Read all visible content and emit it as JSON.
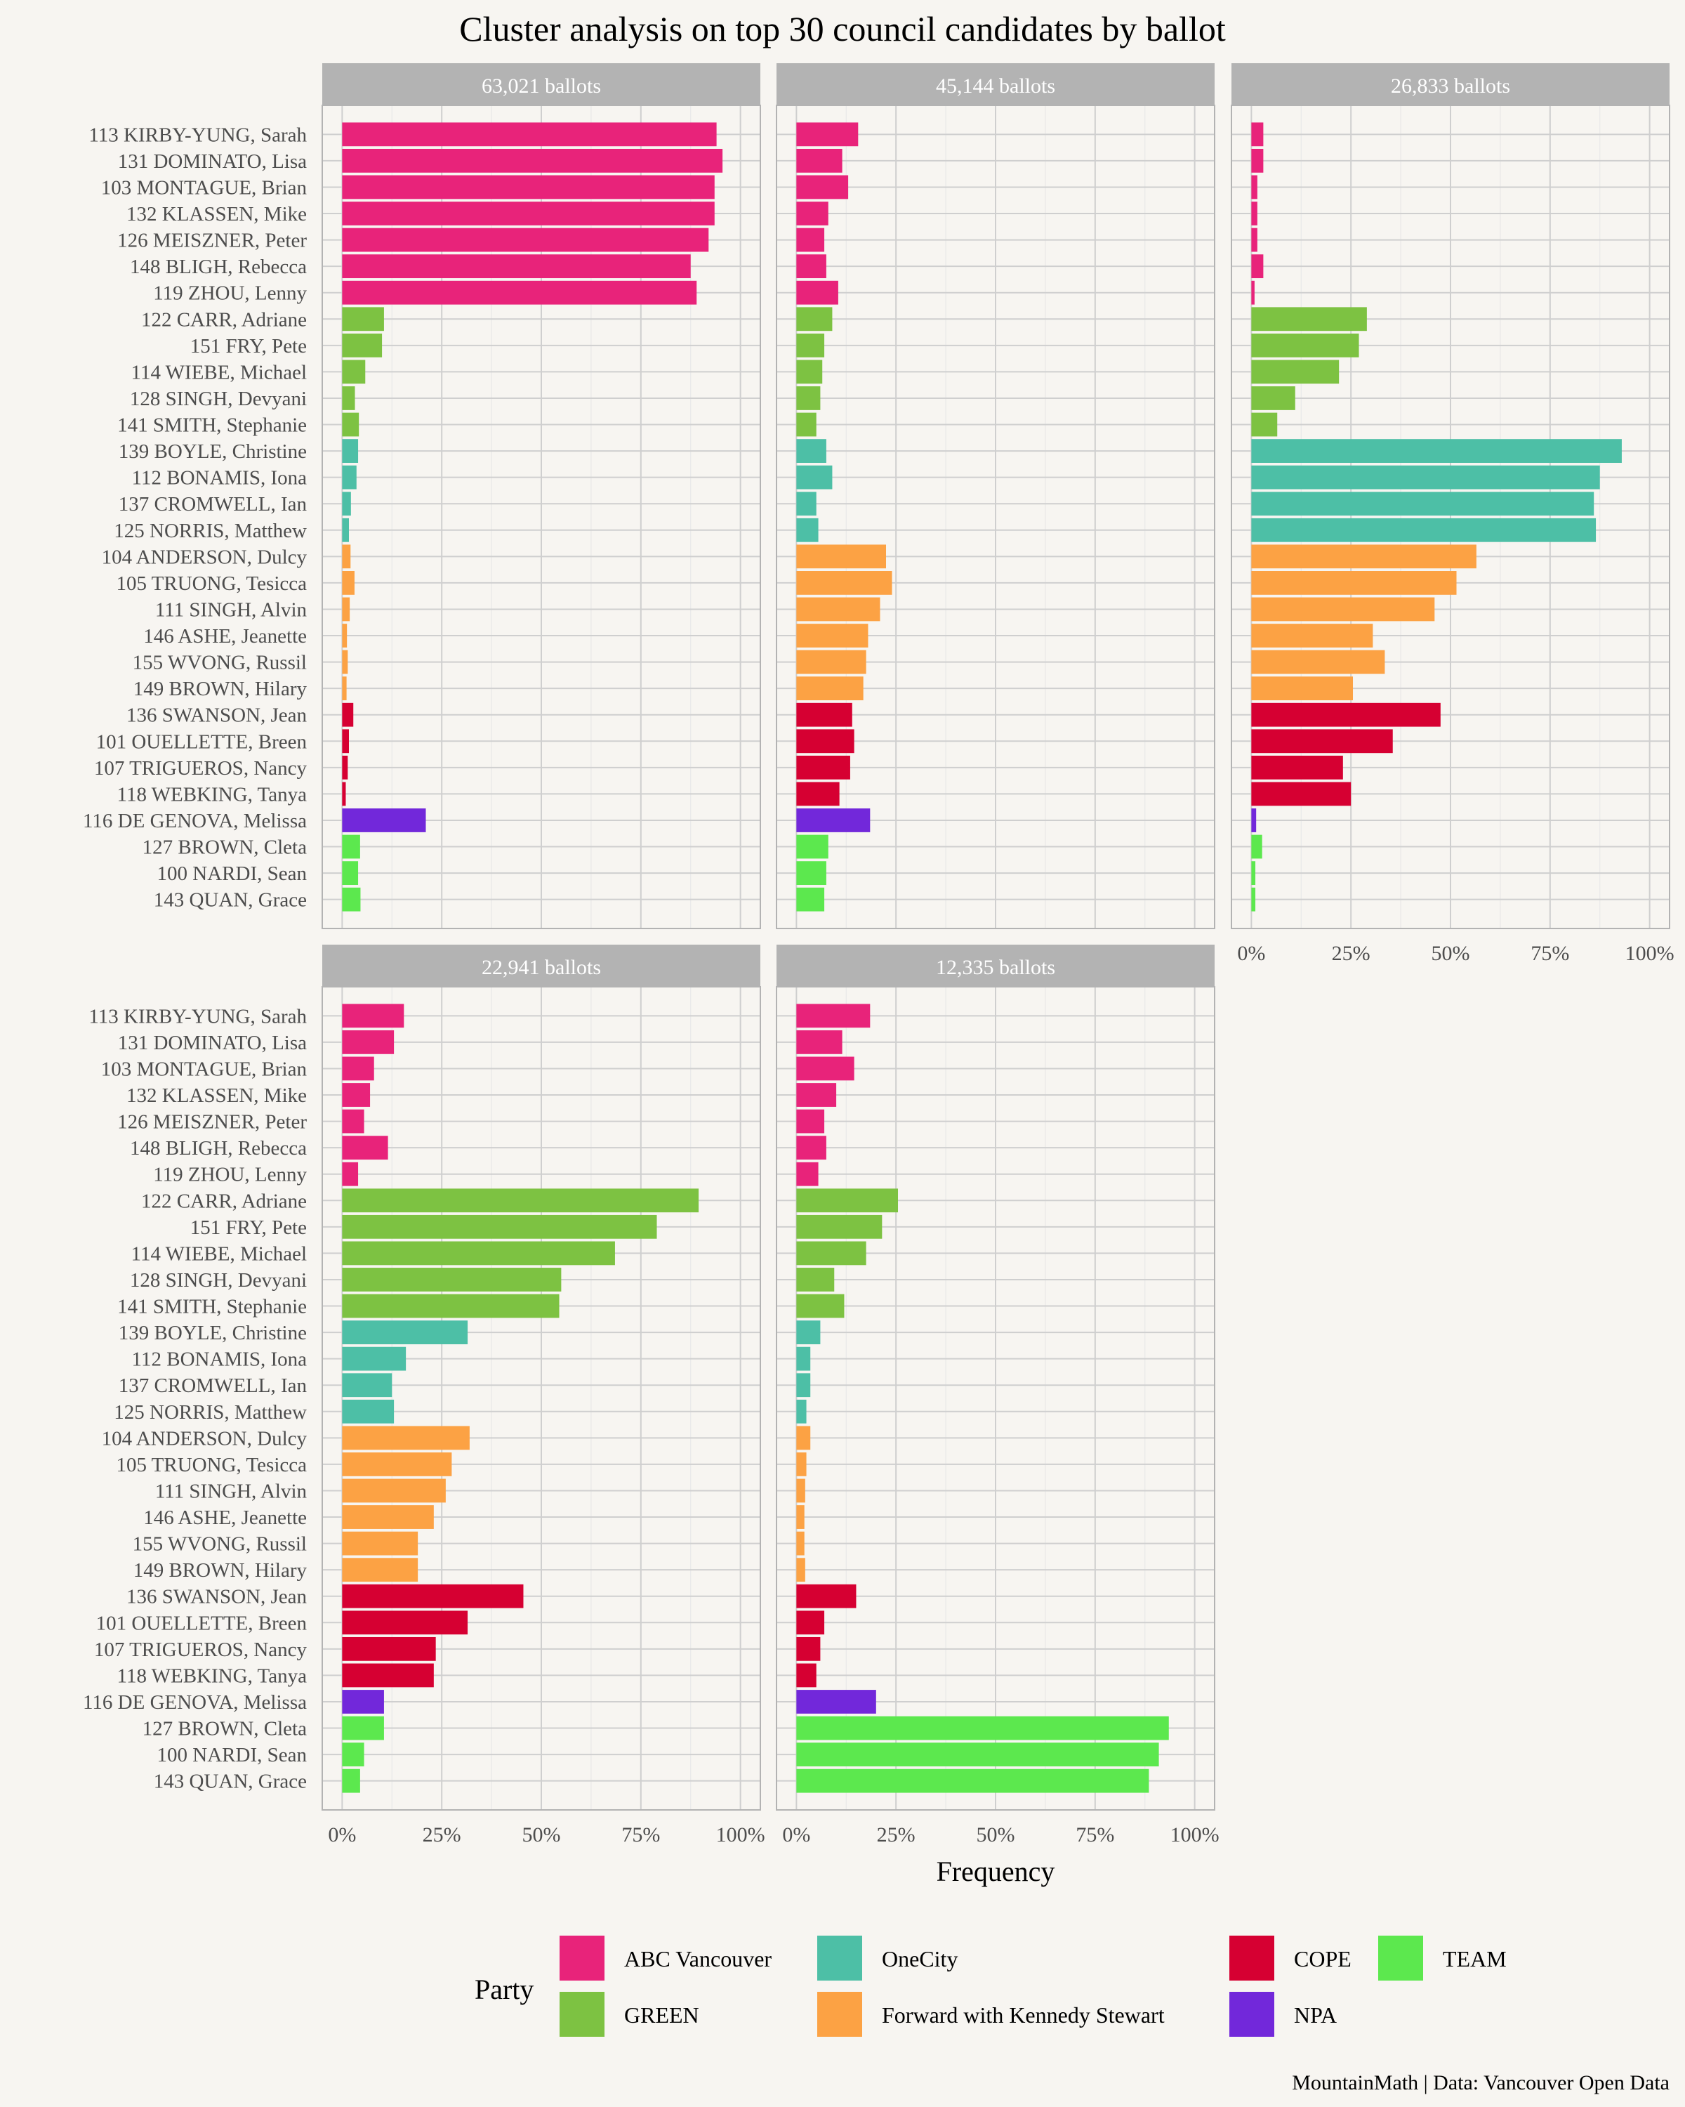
{
  "chart_data": {
    "type": "bar",
    "orientation": "horizontal",
    "title": "Cluster analysis on top 30 council candidates by ballot",
    "xlabel": "Frequency",
    "ylabel": "",
    "xlim": [
      0,
      1
    ],
    "x_ticks": [
      {
        "value": 0,
        "label": "0%"
      },
      {
        "value": 0.25,
        "label": "25%"
      },
      {
        "value": 0.5,
        "label": "50%"
      },
      {
        "value": 0.75,
        "label": "75%"
      },
      {
        "value": 1,
        "label": "100%"
      }
    ],
    "grid": true,
    "legend_title": "Party",
    "legend_position": "bottom",
    "caption": "MountainMath | Data: Vancouver Open Data",
    "parties": [
      {
        "name": "ABC Vancouver",
        "color": "#E8237A"
      },
      {
        "name": "GREEN",
        "color": "#7DC242"
      },
      {
        "name": "OneCity",
        "color": "#4DBFA6"
      },
      {
        "name": "Forward with Kennedy Stewart",
        "color": "#FCA244"
      },
      {
        "name": "COPE",
        "color": "#D60032"
      },
      {
        "name": "NPA",
        "color": "#7228DA"
      },
      {
        "name": "TEAM",
        "color": "#5CE84E"
      }
    ],
    "legend_order": [
      "ABC Vancouver",
      "OneCity",
      "COPE",
      "TEAM",
      "GREEN",
      "Forward with Kennedy Stewart",
      "NPA"
    ],
    "categories": [
      "113 KIRBY-YUNG, Sarah",
      "131 DOMINATO, Lisa",
      "103 MONTAGUE, Brian",
      "132 KLASSEN, Mike",
      "126 MEISZNER, Peter",
      "148 BLIGH, Rebecca",
      "119 ZHOU, Lenny",
      "122 CARR, Adriane",
      "151 FRY, Pete",
      "114 WIEBE, Michael",
      "128 SINGH, Devyani",
      "141 SMITH, Stephanie",
      "139 BOYLE, Christine",
      "112 BONAMIS, Iona",
      "137 CROMWELL, Ian",
      "125 NORRIS, Matthew",
      "104 ANDERSON, Dulcy",
      "105 TRUONG, Tesicca",
      "111 SINGH, Alvin",
      "146 ASHE, Jeanette",
      "155 WVONG, Russil",
      "149 BROWN, Hilary",
      "136 SWANSON, Jean",
      "101 OUELLETTE, Breen",
      "107 TRIGUEROS, Nancy",
      "118 WEBKING, Tanya",
      "116 DE GENOVA, Melissa",
      "127 BROWN, Cleta",
      "100 NARDI, Sean",
      "143 QUAN, Grace"
    ],
    "category_party": [
      "ABC Vancouver",
      "ABC Vancouver",
      "ABC Vancouver",
      "ABC Vancouver",
      "ABC Vancouver",
      "ABC Vancouver",
      "ABC Vancouver",
      "GREEN",
      "GREEN",
      "GREEN",
      "GREEN",
      "GREEN",
      "OneCity",
      "OneCity",
      "OneCity",
      "OneCity",
      "Forward with Kennedy Stewart",
      "Forward with Kennedy Stewart",
      "Forward with Kennedy Stewart",
      "Forward with Kennedy Stewart",
      "Forward with Kennedy Stewart",
      "Forward with Kennedy Stewart",
      "COPE",
      "COPE",
      "COPE",
      "COPE",
      "NPA",
      "TEAM",
      "TEAM",
      "TEAM"
    ],
    "panels": [
      {
        "label": "63,021 ballots",
        "values": [
          0.94,
          0.955,
          0.935,
          0.935,
          0.92,
          0.875,
          0.89,
          0.105,
          0.1,
          0.058,
          0.032,
          0.042,
          0.04,
          0.036,
          0.022,
          0.017,
          0.021,
          0.031,
          0.019,
          0.012,
          0.014,
          0.011,
          0.028,
          0.017,
          0.014,
          0.009,
          0.21,
          0.045,
          0.04,
          0.046
        ]
      },
      {
        "label": "45,144 ballots",
        "values": [
          0.155,
          0.115,
          0.13,
          0.08,
          0.07,
          0.075,
          0.105,
          0.09,
          0.07,
          0.065,
          0.06,
          0.05,
          0.075,
          0.09,
          0.05,
          0.055,
          0.225,
          0.24,
          0.21,
          0.18,
          0.175,
          0.168,
          0.14,
          0.145,
          0.135,
          0.108,
          0.185,
          0.08,
          0.075,
          0.07
        ]
      },
      {
        "label": "26,833 ballots",
        "values": [
          0.03,
          0.03,
          0.015,
          0.015,
          0.015,
          0.03,
          0.008,
          0.29,
          0.27,
          0.22,
          0.11,
          0.065,
          0.93,
          0.875,
          0.86,
          0.865,
          0.565,
          0.515,
          0.46,
          0.305,
          0.335,
          0.255,
          0.475,
          0.355,
          0.23,
          0.25,
          0.012,
          0.027,
          0.01,
          0.01
        ]
      },
      {
        "label": "22,941 ballots",
        "values": [
          0.155,
          0.13,
          0.08,
          0.07,
          0.055,
          0.115,
          0.04,
          0.895,
          0.79,
          0.685,
          0.55,
          0.545,
          0.315,
          0.16,
          0.125,
          0.13,
          0.32,
          0.275,
          0.26,
          0.23,
          0.19,
          0.19,
          0.455,
          0.315,
          0.235,
          0.23,
          0.105,
          0.105,
          0.055,
          0.045
        ]
      },
      {
        "label": "12,335 ballots",
        "values": [
          0.185,
          0.115,
          0.145,
          0.1,
          0.07,
          0.075,
          0.055,
          0.255,
          0.215,
          0.175,
          0.095,
          0.12,
          0.06,
          0.035,
          0.035,
          0.025,
          0.035,
          0.025,
          0.022,
          0.02,
          0.02,
          0.022,
          0.15,
          0.07,
          0.06,
          0.05,
          0.2,
          0.935,
          0.91,
          0.885
        ]
      }
    ]
  }
}
